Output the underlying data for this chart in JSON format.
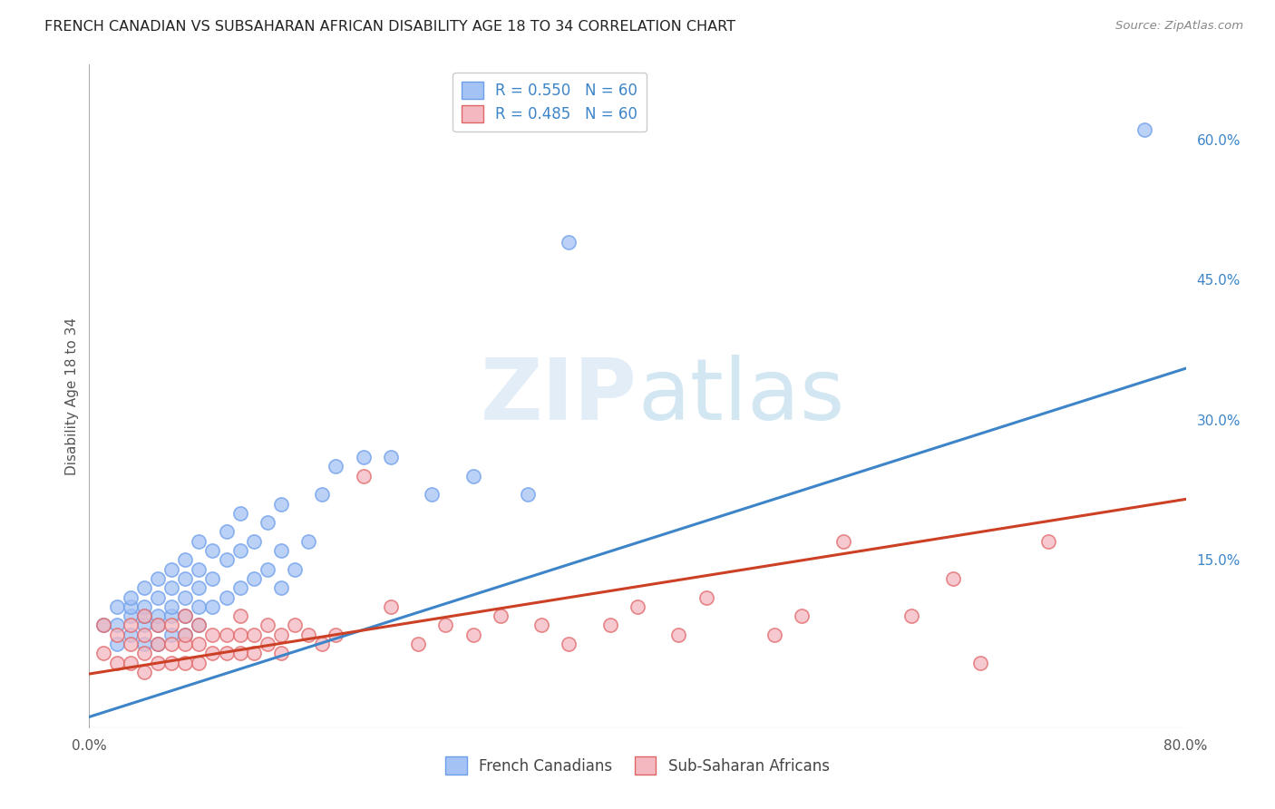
{
  "title": "FRENCH CANADIAN VS SUBSAHARAN AFRICAN DISABILITY AGE 18 TO 34 CORRELATION CHART",
  "source": "Source: ZipAtlas.com",
  "ylabel": "Disability Age 18 to 34",
  "xlim": [
    0.0,
    0.8
  ],
  "ylim": [
    -0.03,
    0.68
  ],
  "blue_R": 0.55,
  "blue_N": 60,
  "pink_R": 0.485,
  "pink_N": 60,
  "blue_color": "#a4c2f4",
  "pink_color": "#f4b8c1",
  "blue_edge_color": "#6d9eeb",
  "pink_edge_color": "#e06666",
  "blue_line_color": "#3d85c8",
  "pink_line_color": "#cc4125",
  "watermark_color": "#cfe2f3",
  "background_color": "#ffffff",
  "grid_color": "#cccccc",
  "blue_line_x0": 0.0,
  "blue_line_y0": -0.018,
  "blue_line_x1": 0.8,
  "blue_line_y1": 0.355,
  "pink_line_x0": 0.0,
  "pink_line_y0": 0.028,
  "pink_line_x1": 0.8,
  "pink_line_y1": 0.215,
  "blue_scatter_x": [
    0.01,
    0.02,
    0.02,
    0.02,
    0.03,
    0.03,
    0.03,
    0.03,
    0.04,
    0.04,
    0.04,
    0.04,
    0.04,
    0.05,
    0.05,
    0.05,
    0.05,
    0.05,
    0.06,
    0.06,
    0.06,
    0.06,
    0.06,
    0.07,
    0.07,
    0.07,
    0.07,
    0.07,
    0.08,
    0.08,
    0.08,
    0.08,
    0.08,
    0.09,
    0.09,
    0.09,
    0.1,
    0.1,
    0.1,
    0.11,
    0.11,
    0.11,
    0.12,
    0.12,
    0.13,
    0.13,
    0.14,
    0.14,
    0.14,
    0.15,
    0.16,
    0.17,
    0.18,
    0.2,
    0.22,
    0.25,
    0.28,
    0.32,
    0.35,
    0.77
  ],
  "blue_scatter_y": [
    0.08,
    0.06,
    0.08,
    0.1,
    0.07,
    0.09,
    0.1,
    0.11,
    0.06,
    0.08,
    0.09,
    0.1,
    0.12,
    0.06,
    0.08,
    0.09,
    0.11,
    0.13,
    0.07,
    0.09,
    0.1,
    0.12,
    0.14,
    0.07,
    0.09,
    0.11,
    0.13,
    0.15,
    0.08,
    0.1,
    0.12,
    0.14,
    0.17,
    0.1,
    0.13,
    0.16,
    0.11,
    0.15,
    0.18,
    0.12,
    0.16,
    0.2,
    0.13,
    0.17,
    0.14,
    0.19,
    0.12,
    0.16,
    0.21,
    0.14,
    0.17,
    0.22,
    0.25,
    0.26,
    0.26,
    0.22,
    0.24,
    0.22,
    0.49,
    0.61
  ],
  "pink_scatter_x": [
    0.01,
    0.01,
    0.02,
    0.02,
    0.03,
    0.03,
    0.03,
    0.04,
    0.04,
    0.04,
    0.04,
    0.05,
    0.05,
    0.05,
    0.06,
    0.06,
    0.06,
    0.07,
    0.07,
    0.07,
    0.07,
    0.08,
    0.08,
    0.08,
    0.09,
    0.09,
    0.1,
    0.1,
    0.11,
    0.11,
    0.11,
    0.12,
    0.12,
    0.13,
    0.13,
    0.14,
    0.14,
    0.15,
    0.16,
    0.17,
    0.18,
    0.2,
    0.22,
    0.24,
    0.26,
    0.28,
    0.3,
    0.33,
    0.35,
    0.38,
    0.4,
    0.43,
    0.45,
    0.5,
    0.52,
    0.55,
    0.6,
    0.63,
    0.65,
    0.7
  ],
  "pink_scatter_y": [
    0.05,
    0.08,
    0.04,
    0.07,
    0.04,
    0.06,
    0.08,
    0.03,
    0.05,
    0.07,
    0.09,
    0.04,
    0.06,
    0.08,
    0.04,
    0.06,
    0.08,
    0.04,
    0.06,
    0.07,
    0.09,
    0.04,
    0.06,
    0.08,
    0.05,
    0.07,
    0.05,
    0.07,
    0.05,
    0.07,
    0.09,
    0.05,
    0.07,
    0.06,
    0.08,
    0.05,
    0.07,
    0.08,
    0.07,
    0.06,
    0.07,
    0.24,
    0.1,
    0.06,
    0.08,
    0.07,
    0.09,
    0.08,
    0.06,
    0.08,
    0.1,
    0.07,
    0.11,
    0.07,
    0.09,
    0.17,
    0.09,
    0.13,
    0.04,
    0.17
  ]
}
